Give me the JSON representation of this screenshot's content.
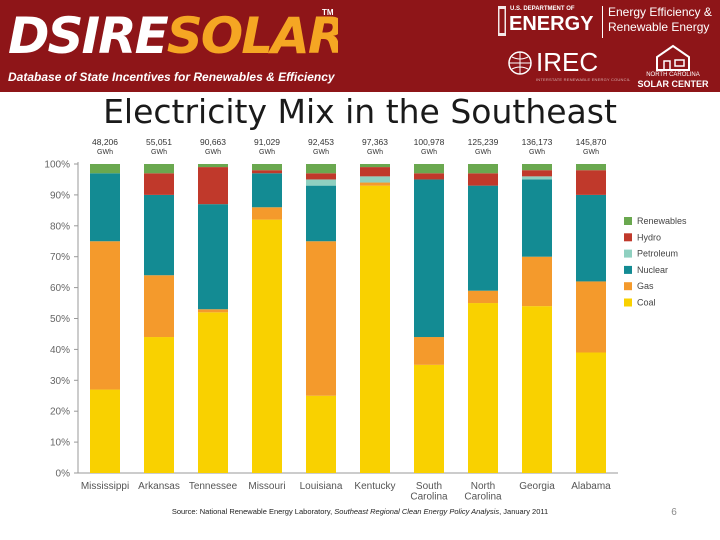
{
  "banner": {
    "logo_dsire": "DSIRE",
    "logo_solar": "SOLAR",
    "logo_tm": "TM",
    "tagline": "Database of State Incentives for Renewables & Efficiency",
    "doe_small": "U.S. DEPARTMENT OF",
    "doe_energy": "ENERGY",
    "doe_ee_line1": "Energy Efficiency &",
    "doe_ee_line2": "Renewable Energy",
    "irec_text": "IREC",
    "irec_sub": "INTERSTATE RENEWABLE ENERGY COUNCIL",
    "ncsc_line1": "NORTH CAROLINA",
    "ncsc_line2": "SOLAR CENTER",
    "color_banner": "#8e1518",
    "color_accent": "#f5a623"
  },
  "title": "Electricity Mix in the Southeast",
  "source": {
    "prefix": "Source: National Renewable Energy Laboratory, ",
    "italic": "Southeast Regional Clean Energy Policy Analysis",
    "suffix": ", January 2011"
  },
  "slide_number": "6",
  "chart_data": {
    "type": "bar",
    "stacked": true,
    "categories": [
      "Mississippi",
      "Arkansas",
      "Tennessee",
      "Missouri",
      "Louisiana",
      "Kentucky",
      "South Carolina",
      "North Carolina",
      "Georgia",
      "Alabama"
    ],
    "totals": [
      "48,206 GWh",
      "55,051 GWh",
      "90,663 GWh",
      "91,029 GWh",
      "92,453 GWh",
      "97,363 GWh",
      "100,978 GWh",
      "125,239 GWh",
      "136,173 GWh",
      "145,870 GWh"
    ],
    "ylim": [
      0,
      100
    ],
    "yticks": [
      "0%",
      "10%",
      "20%",
      "30%",
      "40%",
      "50%",
      "60%",
      "70%",
      "80%",
      "90%",
      "100%"
    ],
    "legend_position": "right",
    "series": [
      {
        "name": "Coal",
        "color": "#f9d100",
        "values": [
          27,
          44,
          52,
          82,
          25,
          93,
          35,
          55,
          54,
          39
        ]
      },
      {
        "name": "Gas",
        "color": "#f49a2c",
        "values": [
          48,
          20,
          1,
          4,
          50,
          1,
          9,
          4,
          16,
          23
        ]
      },
      {
        "name": "Nuclear",
        "color": "#138b93",
        "values": [
          22,
          26,
          34,
          11,
          18,
          0,
          51,
          34,
          25,
          28
        ]
      },
      {
        "name": "Petroleum",
        "color": "#8fd0c0",
        "values": [
          0,
          0,
          0,
          0,
          2,
          2,
          0,
          0,
          1,
          0
        ]
      },
      {
        "name": "Hydro",
        "color": "#c0392b",
        "values": [
          0,
          7,
          12,
          1,
          2,
          3,
          2,
          4,
          2,
          8
        ]
      },
      {
        "name": "Renewables",
        "color": "#6aa84f",
        "values": [
          3,
          3,
          1,
          2,
          3,
          1,
          3,
          3,
          2,
          2
        ]
      }
    ]
  }
}
